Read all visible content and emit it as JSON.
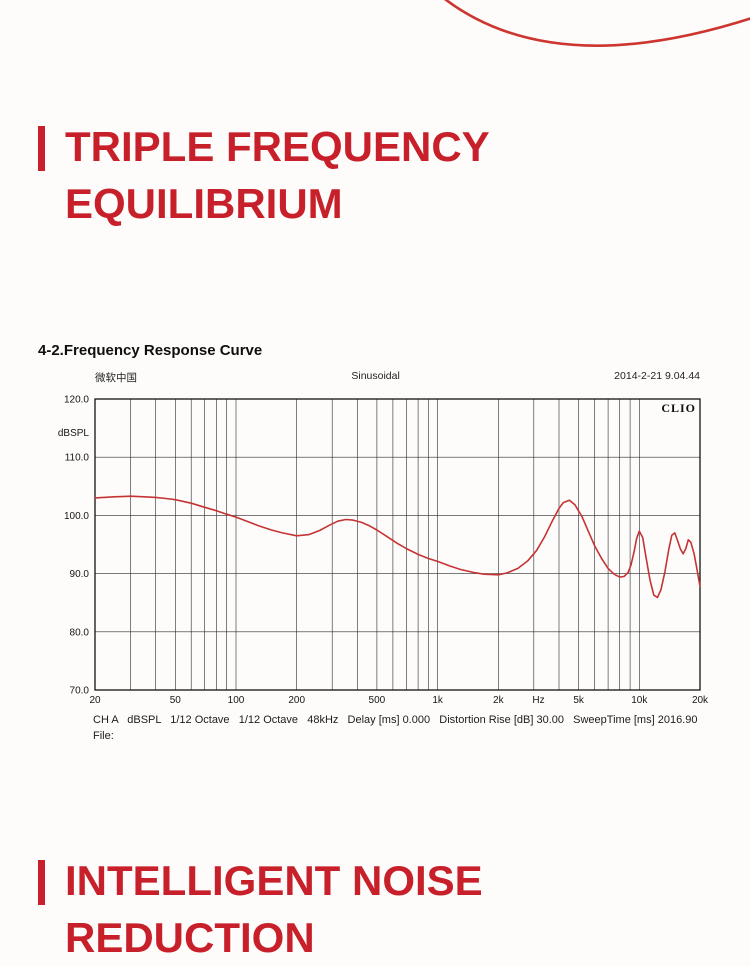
{
  "page": {
    "bg": "#fdfcfb",
    "accent": "#c8202a"
  },
  "heading1": {
    "line1": "TRIPLE FREQUENCY",
    "line2": "EQUILIBRIUM"
  },
  "section_title": "4-2.Frequency Response Curve",
  "chart_header": {
    "left": "微软中国",
    "center": "Sinusoidal",
    "right": "2014-2-21 9.04.44",
    "logo": "CLIO"
  },
  "chart_footer": {
    "settings": "CH A   dBSPL   1/12 Octave   1/12 Octave   48kHz   Delay [ms] 0.000   Distortion Rise [dB] 30.00   SweepTime [ms] 2016.90",
    "file": "File:"
  },
  "heading2": {
    "line1": "INTELLIGENT NOISE",
    "line2": "REDUCTION"
  },
  "chart_data": {
    "type": "line",
    "title": "Sinusoidal",
    "xlabel": "Hz",
    "ylabel": "dBSPL",
    "x_scale": "log",
    "grid": true,
    "xlim": [
      20,
      20000
    ],
    "ylim": [
      70,
      120
    ],
    "y_ticks": [
      120,
      110,
      100,
      90,
      80,
      70
    ],
    "y_tick_labels": [
      "120.0",
      "110.0",
      "100.0",
      "90.0",
      "80.0",
      "70.0"
    ],
    "x_ticks": [
      20,
      50,
      100,
      200,
      500,
      1000,
      2000,
      5000,
      10000,
      20000
    ],
    "x_tick_labels": [
      "20",
      "50",
      "100",
      "200",
      "500",
      "1k",
      "2k",
      "5k",
      "10k",
      "20k"
    ],
    "x_unit_pos": 3162,
    "grid_x": [
      30,
      40,
      50,
      60,
      70,
      80,
      90,
      100,
      200,
      300,
      400,
      500,
      600,
      700,
      800,
      900,
      1000,
      2000,
      3000,
      4000,
      5000,
      6000,
      7000,
      8000,
      9000,
      10000
    ],
    "series": [
      {
        "name": "CH A dBSPL",
        "color": "#c53434",
        "x": [
          20,
          25,
          30,
          35,
          40,
          45,
          50,
          60,
          70,
          80,
          90,
          100,
          115,
          130,
          150,
          170,
          200,
          230,
          260,
          290,
          320,
          350,
          380,
          420,
          460,
          500,
          560,
          630,
          700,
          800,
          900,
          1000,
          1150,
          1300,
          1500,
          1700,
          2000,
          2200,
          2500,
          2800,
          3100,
          3400,
          3700,
          4000,
          4200,
          4500,
          4800,
          5200,
          5600,
          6000,
          6500,
          7000,
          7500,
          8000,
          8400,
          8800,
          9100,
          9400,
          9700,
          10000,
          10400,
          10800,
          11300,
          11800,
          12300,
          12800,
          13400,
          14000,
          14500,
          15000,
          15500,
          16000,
          16500,
          17000,
          17500,
          18000,
          18700,
          19300,
          20000
        ],
        "y": [
          103.0,
          103.2,
          103.3,
          103.2,
          103.1,
          102.9,
          102.7,
          102.1,
          101.4,
          100.8,
          100.2,
          99.7,
          98.9,
          98.2,
          97.5,
          97.0,
          96.5,
          96.7,
          97.4,
          98.3,
          99.0,
          99.3,
          99.2,
          98.8,
          98.2,
          97.5,
          96.4,
          95.2,
          94.3,
          93.3,
          92.6,
          92.1,
          91.3,
          90.7,
          90.2,
          89.9,
          89.8,
          90.1,
          90.9,
          92.2,
          94.0,
          96.4,
          99.0,
          101.2,
          102.2,
          102.6,
          101.8,
          99.8,
          97.2,
          94.8,
          92.6,
          90.9,
          89.9,
          89.4,
          89.5,
          90.2,
          91.5,
          93.6,
          96.0,
          97.3,
          96.2,
          92.8,
          88.9,
          86.3,
          85.9,
          87.2,
          90.3,
          94.2,
          96.6,
          97.0,
          95.6,
          94.2,
          93.4,
          94.3,
          95.8,
          95.4,
          93.4,
          90.8,
          87.8
        ]
      }
    ]
  }
}
